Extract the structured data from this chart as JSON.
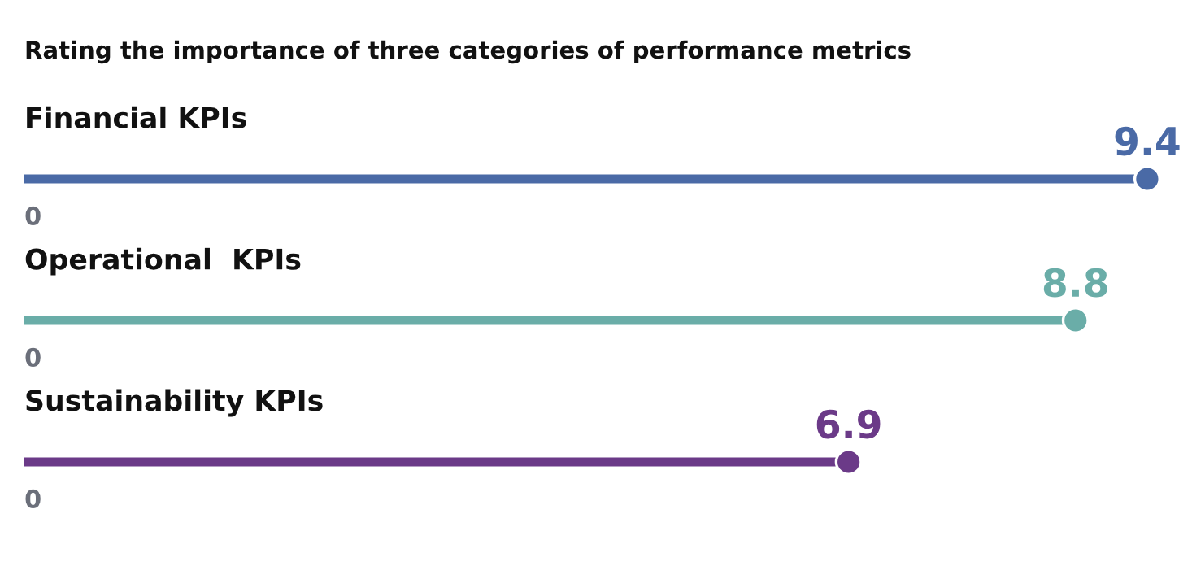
{
  "chart_data": {
    "type": "lollipop",
    "title": "Rating the importance of three categories of performance metrics",
    "orientation": "horizontal",
    "categories": [
      "Financial KPIs",
      "Operational  KPIs",
      "Sustainability KPIs"
    ],
    "values": [
      9.4,
      8.8,
      6.9
    ],
    "colors": [
      "#4a6aa6",
      "#6aada8",
      "#6b3a88"
    ],
    "annotations": [
      "0",
      "0",
      "0"
    ],
    "data_labels": true,
    "marker": "circle"
  }
}
